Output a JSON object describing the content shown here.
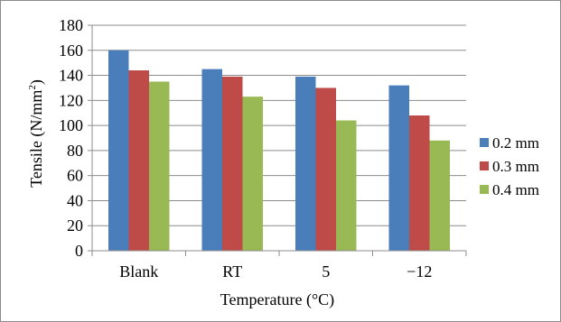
{
  "chart_data": {
    "type": "bar",
    "categories": [
      "Blank",
      "RT",
      "5",
      "−12"
    ],
    "series": [
      {
        "name": "0.2 mm",
        "values": [
          160,
          145,
          139,
          132
        ],
        "color": "#4a7ebb"
      },
      {
        "name": "0.3 mm",
        "values": [
          144,
          139,
          130,
          108
        ],
        "color": "#be4b48"
      },
      {
        "name": "0.4 mm",
        "values": [
          135,
          123,
          104,
          88
        ],
        "color": "#98b954"
      }
    ],
    "xlabel": "Temperature (°C)",
    "ylabel_main": "Tensile (N/mm",
    "ylabel_sup": "2",
    "ylabel_end": ")",
    "ylim": [
      0,
      180
    ],
    "yticks": [
      "0",
      "20",
      "40",
      "60",
      "80",
      "100",
      "120",
      "140",
      "160",
      "180"
    ],
    "grid": true,
    "legend_position": "right"
  }
}
